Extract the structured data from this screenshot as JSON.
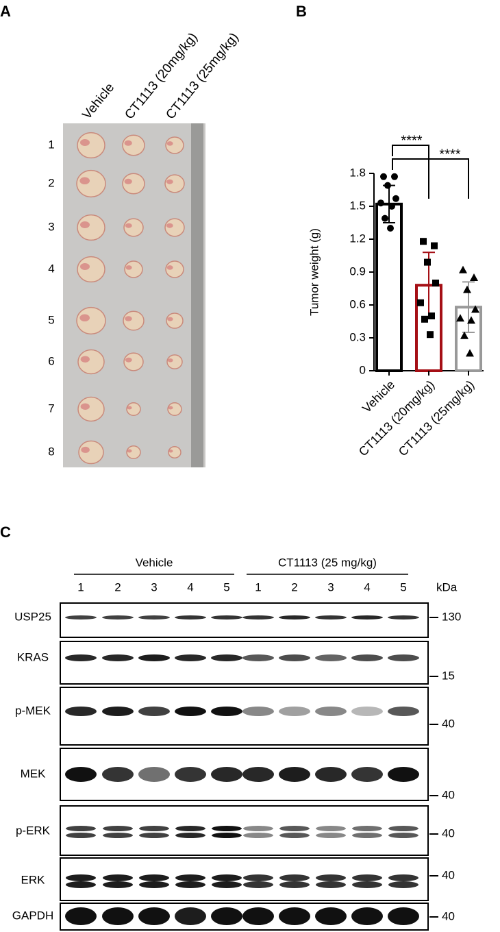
{
  "panel_a": {
    "label": "A",
    "columns": [
      "Vehicle",
      "CT1113 (20mg/kg)",
      "CT1113 (25mg/kg)"
    ],
    "rows": [
      1,
      2,
      3,
      4,
      5,
      6,
      7,
      8
    ]
  },
  "chart_data": {
    "type": "bar",
    "panel_label": "B",
    "ylabel": "Tumor weight (g)",
    "categories": [
      "Vehicle",
      "CT1113 (20mg/kg)",
      "CT1113 (25mg/kg)"
    ],
    "values": [
      1.52,
      0.78,
      0.58
    ],
    "errors": [
      0.17,
      0.3,
      0.23
    ],
    "colors": [
      "#000000",
      "#a50f15",
      "#999999"
    ],
    "points": [
      [
        1.77,
        1.77,
        1.69,
        1.57,
        1.53,
        1.5,
        1.39,
        1.3
      ],
      [
        1.18,
        1.14,
        0.99,
        0.8,
        0.62,
        0.5,
        0.47,
        0.33
      ],
      [
        0.92,
        0.85,
        0.74,
        0.56,
        0.48,
        0.46,
        0.32,
        0.16
      ]
    ],
    "ylim": [
      0,
      1.8
    ],
    "yticks": [
      0,
      0.3,
      0.6,
      0.9,
      1.2,
      1.5,
      1.8
    ],
    "annotations": [
      "****",
      "****"
    ]
  },
  "panel_c": {
    "label": "C",
    "groups": [
      {
        "title": "Vehicle",
        "lanes": [
          1,
          2,
          3,
          4,
          5
        ]
      },
      {
        "title": "CT1113 (25 mg/kg)",
        "lanes": [
          1,
          2,
          3,
          4,
          5
        ]
      }
    ],
    "unit": "kDa",
    "blots": [
      {
        "name": "USP25",
        "marker": 130
      },
      {
        "name": "KRAS",
        "marker": 15
      },
      {
        "name": "p-MEK",
        "marker": 40
      },
      {
        "name": "MEK",
        "marker": 40
      },
      {
        "name": "p-ERK",
        "marker": 40
      },
      {
        "name": "ERK",
        "marker": 40
      },
      {
        "name": "GAPDH",
        "marker": 40
      }
    ]
  }
}
